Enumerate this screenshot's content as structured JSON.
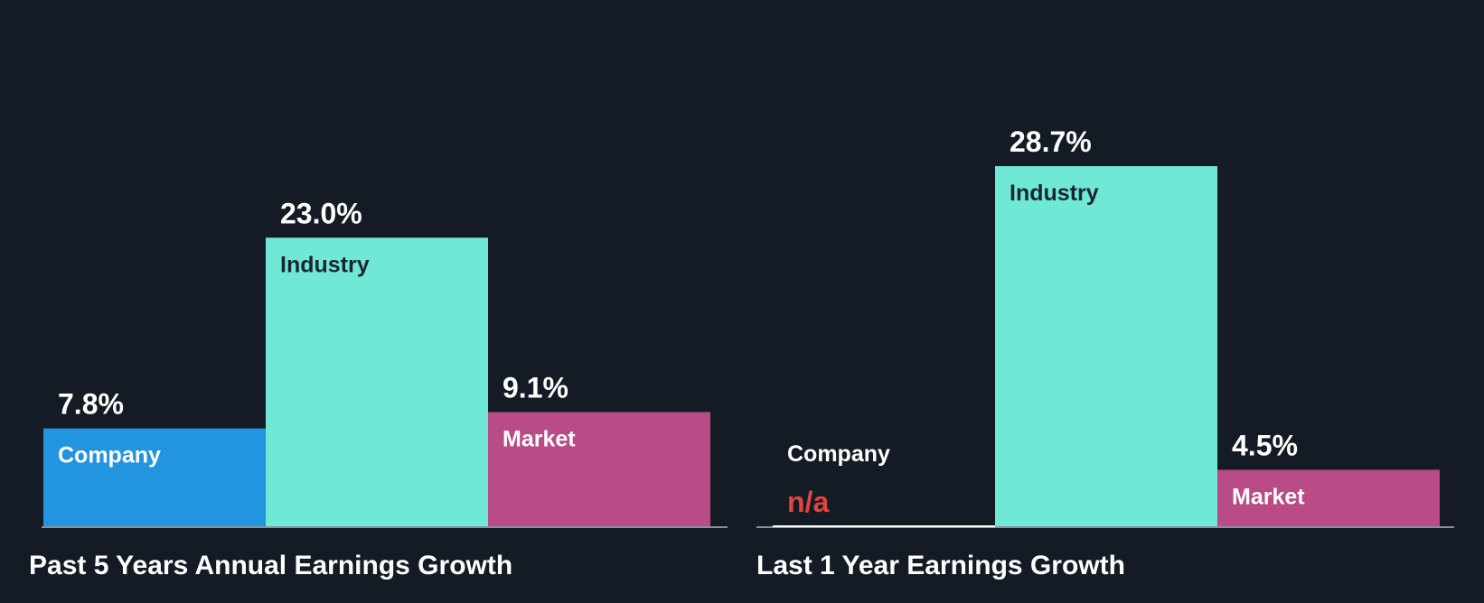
{
  "theme": {
    "background": "#151b24",
    "axis_color": "#8a8f98",
    "value_label_color": "#ffffff",
    "na_color": "#e0453a",
    "bar_text_light": "#ffffff",
    "bar_text_dark": "#1a2530"
  },
  "chart_data": [
    {
      "type": "bar",
      "title": "Past 5 Years Annual Earnings Growth",
      "unit": "%",
      "categories": [
        "Company",
        "Industry",
        "Market"
      ],
      "values": [
        7.8,
        23.0,
        9.1
      ],
      "value_labels": [
        "7.8%",
        "23.0%",
        "9.1%"
      ],
      "colors": [
        "#2394e0",
        "#6fe8d6",
        "#b94b87"
      ],
      "ylim": [
        0,
        30
      ]
    },
    {
      "type": "bar",
      "title": "Last 1 Year Earnings Growth",
      "unit": "%",
      "categories": [
        "Company",
        "Industry",
        "Market"
      ],
      "values": [
        null,
        28.7,
        4.5
      ],
      "value_labels": [
        "n/a",
        "28.7%",
        "4.5%"
      ],
      "colors": [
        "#2394e0",
        "#6fe8d6",
        "#b94b87"
      ],
      "ylim": [
        0,
        30
      ]
    }
  ]
}
